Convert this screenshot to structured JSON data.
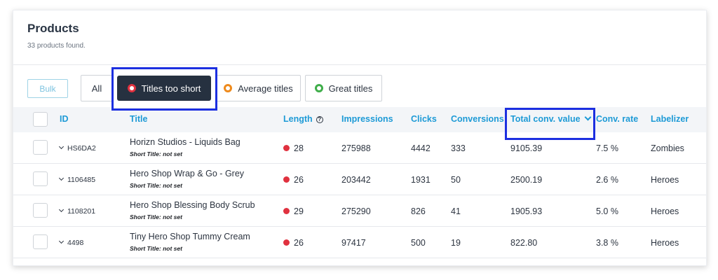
{
  "page": {
    "title": "Products",
    "subtitle": "33 products found."
  },
  "toolbar": {
    "bulk_label": "Bulk",
    "filters": [
      {
        "label": "All"
      },
      {
        "label": "Titles too short",
        "dot_color": "#e0313f",
        "active": true
      },
      {
        "label": "Average titles",
        "dot_color": "#ee8a1c"
      },
      {
        "label": "Great titles",
        "dot_color": "#3fae4a"
      }
    ]
  },
  "table": {
    "columns": [
      "ID",
      "Title",
      "Length",
      "Impressions",
      "Clicks",
      "Conversions",
      "Total conv. value",
      "Conv. rate",
      "Labelizer"
    ],
    "rows": [
      {
        "id": "HS6DA2",
        "title": "Horizn Studios - Liquids Bag",
        "short_title": "Short Title: not set",
        "length": "28",
        "impressions": "275988",
        "clicks": "4442",
        "conversions": "333",
        "total_conv_value": "9105.39",
        "conv_rate": "7.5 %",
        "labelizer": "Zombies"
      },
      {
        "id": "1106485",
        "title": "Hero Shop Wrap & Go - Grey",
        "short_title": "Short Title: not set",
        "length": "26",
        "impressions": "203442",
        "clicks": "1931",
        "conversions": "50",
        "total_conv_value": "2500.19",
        "conv_rate": "2.6 %",
        "labelizer": "Heroes"
      },
      {
        "id": "1108201",
        "title": "Hero Shop Blessing Body Scrub",
        "short_title": "Short Title: not set",
        "length": "29",
        "impressions": "275290",
        "clicks": "826",
        "conversions": "41",
        "total_conv_value": "1905.93",
        "conv_rate": "5.0 %",
        "labelizer": "Heroes"
      },
      {
        "id": "4498",
        "title": "Tiny Hero Shop Tummy Cream",
        "short_title": "Short Title: not set",
        "length": "26",
        "impressions": "97417",
        "clicks": "500",
        "conversions": "19",
        "total_conv_value": "822.80",
        "conv_rate": "3.8 %",
        "labelizer": "Heroes"
      }
    ]
  },
  "colors": {
    "accent": "#1d9ad6",
    "active_filter_bg": "#263140",
    "highlight": "#1c2fe0",
    "length_dot": "#e0313f"
  }
}
